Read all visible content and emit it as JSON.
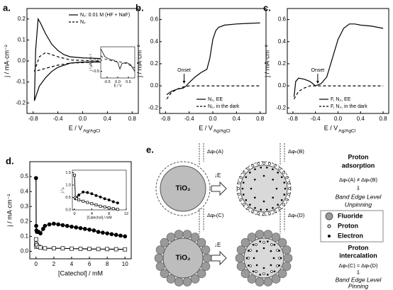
{
  "chart_data": [
    {
      "type": "line",
      "label": "a.",
      "xlabel": "E / V",
      "xlabel_sub": "Ag/AgCl",
      "ylabel": "j / mA·cm⁻²",
      "xlim": [
        -0.9,
        0.9
      ],
      "ylim": [
        -0.25,
        0.25
      ],
      "xticks": [
        -0.8,
        -0.4,
        {
          "value": 0,
          "label": "0.0"
        },
        0.4,
        0.8
      ],
      "yticks": [
        -0.2,
        -0.1,
        {
          "value": 0,
          "label": "0.0"
        },
        0.1,
        0.2
      ],
      "legend": "upper right",
      "series": [
        {
          "name": "N₂: 0.01 M (HF + NaF)",
          "color": "#000000",
          "dash": false,
          "x": [
            -0.78,
            -0.76,
            -0.72,
            -0.68,
            -0.6,
            -0.5,
            -0.4,
            -0.3,
            -0.2,
            0,
            0.4,
            0.8,
            0.8,
            0.4,
            0,
            -0.2,
            -0.4,
            -0.5,
            -0.6,
            -0.7,
            -0.78
          ],
          "values": [
            -0.19,
            0.05,
            0.2,
            0.18,
            0.13,
            0.08,
            0.05,
            0.03,
            0.02,
            0.015,
            0.01,
            0.01,
            -0.005,
            -0.005,
            -0.005,
            -0.01,
            -0.03,
            -0.05,
            -0.08,
            -0.12,
            -0.19
          ]
        },
        {
          "name": "N₂",
          "color": "#000000",
          "dash": true,
          "x": [
            -0.78,
            -0.7,
            -0.6,
            -0.5,
            -0.4,
            -0.2,
            0.2,
            0.8,
            0.8,
            0.2,
            -0.2,
            -0.4,
            -0.6,
            -0.78
          ],
          "values": [
            -0.05,
            0.02,
            0.04,
            0.03,
            0.02,
            0.005,
            0,
            0,
            0,
            -0.005,
            -0.01,
            -0.02,
            -0.035,
            -0.05
          ]
        }
      ]
    },
    {
      "type": "line",
      "inset": true,
      "xlabel": "E / V",
      "ylabel": "j / µA·cm⁻²",
      "xlim": [
        -0.8,
        0.8
      ],
      "ylim": [
        -0.8,
        0.6
      ],
      "xticks": [
        -0.5,
        {
          "value": 0,
          "label": "0.0"
        },
        0.5
      ],
      "yticks": [
        -0.5,
        {
          "value": 0,
          "label": "0.0"
        }
      ],
      "series": [
        {
          "color": "#000000",
          "dash": false,
          "x": [
            -0.8,
            -0.6,
            -0.4,
            -0.2,
            0,
            0.1,
            0.2,
            0.4,
            0.6,
            0.8
          ],
          "values": [
            0.5,
            0.15,
            0.05,
            0,
            -0.1,
            -0.4,
            -0.15,
            -0.1,
            -0.2,
            -0.5
          ]
        },
        {
          "color": "#000000",
          "dash": true,
          "x": [
            -0.8,
            -0.6,
            -0.4,
            -0.2,
            0,
            0.2,
            0.4,
            0.6,
            0.8
          ],
          "values": [
            0.2,
            0.05,
            0,
            -0.05,
            -0.05,
            -0.1,
            -0.15,
            -0.25,
            -0.35
          ]
        }
      ]
    },
    {
      "type": "line",
      "label": "b.",
      "xlabel": "E / V",
      "xlabel_sub": "Ag/AgCl",
      "ylabel": "j / mA·cm⁻²",
      "xlim": [
        -0.9,
        0.9
      ],
      "ylim": [
        -0.25,
        0.7
      ],
      "xticks": [
        -0.8,
        -0.4,
        {
          "value": 0,
          "label": "0.0"
        },
        0.4,
        0.8
      ],
      "yticks": [
        -0.2,
        {
          "value": 0,
          "label": "0.0"
        },
        0.2,
        0.4,
        0.6
      ],
      "legend": "lower right",
      "annotation": "Onset",
      "series": [
        {
          "name": "N₂, EE",
          "color": "#000000",
          "dash": false,
          "x": [
            -0.78,
            -0.7,
            -0.6,
            -0.5,
            -0.45,
            -0.4,
            -0.3,
            -0.2,
            -0.1,
            -0.05,
            0,
            0.05,
            0.1,
            0.2,
            0.4,
            0.6,
            0.8
          ],
          "values": [
            -0.08,
            -0.05,
            -0.03,
            -0.02,
            0,
            0.03,
            0.08,
            0.12,
            0.15,
            0.25,
            0.42,
            0.5,
            0.53,
            0.55,
            0.56,
            0.565,
            0.57
          ]
        },
        {
          "name": "N₂, in the dark",
          "color": "#000000",
          "dash": true,
          "x": [
            -0.78,
            -0.7,
            -0.6,
            -0.5,
            -0.4,
            0,
            0.8
          ],
          "values": [
            -0.12,
            -0.06,
            -0.03,
            -0.01,
            0,
            0,
            0
          ]
        }
      ]
    },
    {
      "type": "line",
      "label": "c.",
      "xlabel": "E / V",
      "xlabel_sub": "Ag/AgCl",
      "ylabel": "j / mA·cm⁻²",
      "xlim": [
        -0.9,
        0.9
      ],
      "ylim": [
        -0.25,
        0.7
      ],
      "xticks": [
        -0.8,
        -0.4,
        {
          "value": 0,
          "label": "0.0"
        },
        0.4,
        0.8
      ],
      "yticks": [
        -0.2,
        {
          "value": 0,
          "label": "0.0"
        },
        0.2,
        0.4,
        0.6
      ],
      "legend": "lower right",
      "annotation": "Onset",
      "series": [
        {
          "name": "F, N₂, EE",
          "color": "#000000",
          "dash": false,
          "x": [
            -0.78,
            -0.75,
            -0.7,
            -0.6,
            -0.5,
            -0.45,
            -0.4,
            -0.3,
            -0.2,
            -0.1,
            0,
            0.1,
            0.2,
            0.3,
            0.4,
            0.6,
            0.8
          ],
          "values": [
            -0.1,
            0.04,
            0.07,
            0.06,
            0.04,
            0.02,
            0,
            0.02,
            0.08,
            0.25,
            0.42,
            0.52,
            0.56,
            0.56,
            0.55,
            0.54,
            0.52
          ]
        },
        {
          "name": "F, N₂, in the dark",
          "color": "#000000",
          "dash": true,
          "x": [
            -0.78,
            -0.7,
            -0.6,
            -0.5,
            0.8
          ],
          "values": [
            -0.12,
            -0.05,
            -0.02,
            0,
            0
          ]
        }
      ]
    },
    {
      "type": "line",
      "label": "d.",
      "xlabel": "[Catechol] / mM",
      "ylabel": "j / mA·cm⁻²",
      "xlim": [
        -0.7,
        10.7
      ],
      "ylim": [
        -0.05,
        0.6
      ],
      "xticks": [
        0,
        2,
        4,
        6,
        8,
        10
      ],
      "yticks": [
        {
          "value": 0,
          "label": "0.0"
        },
        0.1,
        0.2,
        0.3,
        0.4,
        0.5
      ],
      "series": [
        {
          "color": "#000000",
          "dash": false,
          "marker": "circle",
          "filled": true,
          "x": [
            0,
            0.02,
            0.05,
            0.1,
            0.2,
            0.3,
            0.5,
            0.8,
            1,
            1.5,
            2,
            2.5,
            3,
            3.5,
            4,
            4.5,
            5,
            5.5,
            6,
            6.5,
            7,
            7.5,
            8,
            8.5,
            9,
            9.5,
            10
          ],
          "values": [
            0.49,
            0.17,
            0.14,
            0.13,
            0.13,
            0.13,
            0.12,
            0.15,
            0.17,
            0.18,
            0.185,
            0.18,
            0.175,
            0.17,
            0.165,
            0.16,
            0.155,
            0.15,
            0.145,
            0.14,
            0.13,
            0.125,
            0.12,
            0.115,
            0.11,
            0.105,
            0.1
          ]
        },
        {
          "color": "#000000",
          "dash": false,
          "marker": "square",
          "filled": false,
          "x": [
            0,
            0.02,
            0.05,
            0.1,
            0.3,
            0.5,
            1,
            2,
            3,
            4,
            5,
            6,
            7,
            8,
            9,
            10
          ],
          "values": [
            0.08,
            0.05,
            0.03,
            0.04,
            0.03,
            0.025,
            0.02,
            0.02,
            0.02,
            0.018,
            0.017,
            0.016,
            0.015,
            0.015,
            0.014,
            0.013
          ]
        }
      ]
    },
    {
      "type": "line",
      "inset": true,
      "xlabel": "[Catechol] / mM",
      "ylabel": "j / j₀",
      "xlim": [
        -0.5,
        12
      ],
      "ylim": [
        0,
        1.6
      ],
      "xticks": [
        0,
        4,
        8,
        12
      ],
      "yticks": [
        {
          "value": 0,
          "label": "0.0"
        },
        0.5,
        {
          "value": 1,
          "label": "1.0"
        },
        1.5
      ],
      "series": [
        {
          "color": "#000000",
          "dash": false,
          "marker": "circle",
          "filled": true,
          "x": [
            0,
            0.2,
            0.5,
            1,
            2,
            3,
            4,
            5,
            6,
            7,
            8,
            9,
            10
          ],
          "values": [
            1.4,
            0.45,
            0.5,
            0.6,
            0.72,
            0.7,
            0.65,
            0.58,
            0.52,
            0.45,
            0.4,
            0.33,
            0.28
          ]
        },
        {
          "color": "#000000",
          "dash": false,
          "marker": "square",
          "filled": false,
          "x": [
            0,
            0.2,
            0.5,
            1,
            2,
            3,
            4,
            5,
            6,
            7,
            8,
            9,
            10
          ],
          "values": [
            1.4,
            0.5,
            0.45,
            0.4,
            0.35,
            0.3,
            0.25,
            0.2,
            0.15,
            0.12,
            0.08,
            0.05,
            0.02
          ]
        }
      ]
    }
  ],
  "diagram": {
    "label": "e.",
    "delta_phi": [
      "Δφₕ(A)",
      "Δφₕ(B)",
      "Δφₕ(C)",
      "Δφₕ(D)"
    ],
    "core": [
      "TiO₂",
      "TiO₂"
    ],
    "field": [
      "↓E",
      "↓E"
    ],
    "adsorption": {
      "title": [
        "Proton",
        "adsorption"
      ],
      "relation": "Δφₕ(A) ≠ Δφₕ(B)",
      "arrow": "⇩",
      "result": [
        "Band Edge Level",
        "Unpinning"
      ]
    },
    "intercalation": {
      "title": [
        "Proton",
        "intercalation"
      ],
      "relation": "Δφₕ(C) ≈ Δφₕ(D)",
      "arrow": "⇩",
      "result": [
        "Band Edge Level",
        "Pinning"
      ]
    },
    "legend": [
      "Fluoride",
      "Proton",
      "Electron"
    ]
  }
}
